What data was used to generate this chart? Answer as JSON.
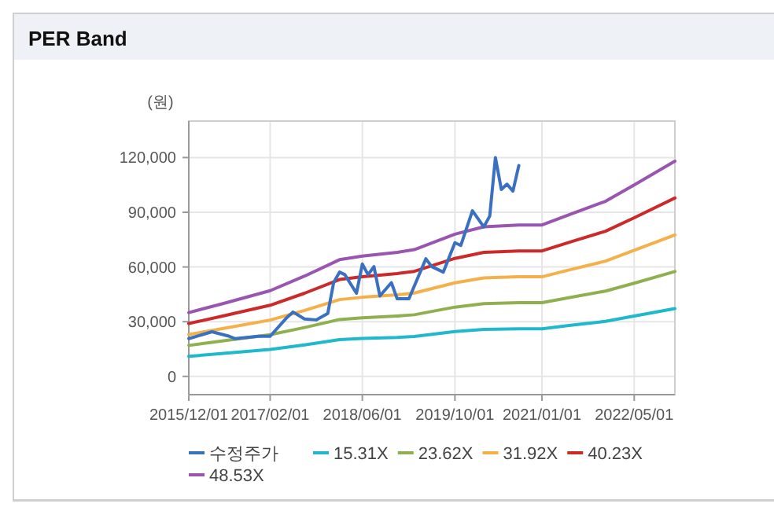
{
  "chart_data": {
    "type": "line",
    "title": "PER Band",
    "ylabel": "(원)",
    "xlim": [
      "2015-12-01",
      "2022-12-01"
    ],
    "xticks": [
      {
        "value": "2015-12-01",
        "label": "2015/12/01"
      },
      {
        "value": "2017-02-01",
        "label": "2017/02/01"
      },
      {
        "value": "2018-06-01",
        "label": "2018/06/01"
      },
      {
        "value": "2019-10-01",
        "label": "2019/10/01"
      },
      {
        "value": "2021-01-01",
        "label": "2021/01/01"
      },
      {
        "value": "2022-05-01",
        "label": "2022/05/01"
      }
    ],
    "ylim": [
      -10000,
      140000
    ],
    "yticks": [
      0,
      {
        "value": 30000,
        "label": "30,000"
      },
      {
        "value": 60000,
        "label": "60,000"
      },
      {
        "value": 90000,
        "label": "90,000"
      },
      {
        "value": 120000,
        "label": "120,000"
      }
    ],
    "grid": true,
    "legend": "bottom",
    "marker": "none",
    "line_style": "solid",
    "series": [
      {
        "name": "수정주가",
        "color": "#3a70c0",
        "x": [
          "2015-12",
          "2016-04",
          "2016-07",
          "2016-08",
          "2016-12",
          "2017-02",
          "2017-05",
          "2017-06",
          "2017-08",
          "2017-10",
          "2017-12",
          "2018-01",
          "2018-02",
          "2018-03",
          "2018-05",
          "2018-06",
          "2018-07",
          "2018-08",
          "2018-09",
          "2018-11",
          "2018-12",
          "2019-02",
          "2019-05",
          "2019-06",
          "2019-08",
          "2019-10",
          "2019-11",
          "2020-01",
          "2020-03",
          "2020-04",
          "2020-05",
          "2020-06",
          "2020-07",
          "2020-08",
          "2020-09"
        ],
        "values": [
          20700,
          24500,
          22000,
          20700,
          22000,
          22000,
          32400,
          35300,
          31500,
          31000,
          34500,
          51400,
          57200,
          55800,
          45600,
          61600,
          55800,
          60200,
          44100,
          51400,
          42600,
          42600,
          64500,
          60200,
          57200,
          73300,
          71800,
          90800,
          82000,
          87900,
          120000,
          102500,
          105400,
          101600,
          115600
        ]
      },
      {
        "name": "15.31X",
        "color": "#1fb8cc",
        "x": [
          "2015-12",
          "2016-06",
          "2017-02",
          "2017-08",
          "2018-02",
          "2018-06",
          "2018-12",
          "2019-03",
          "2019-10",
          "2020-03",
          "2020-09",
          "2021-01",
          "2021-06",
          "2021-12",
          "2022-05",
          "2022-12"
        ],
        "values": [
          11000,
          12600,
          14800,
          17300,
          20200,
          20800,
          21400,
          21900,
          24600,
          25800,
          26100,
          26100,
          28000,
          30200,
          33100,
          37200
        ]
      },
      {
        "name": "23.62X",
        "color": "#90b050",
        "x": [
          "2015-12",
          "2016-06",
          "2017-02",
          "2017-08",
          "2018-02",
          "2018-06",
          "2018-12",
          "2019-03",
          "2019-10",
          "2020-03",
          "2020-09",
          "2021-01",
          "2021-06",
          "2021-12",
          "2022-05",
          "2022-12"
        ],
        "values": [
          17000,
          19500,
          22900,
          26800,
          31200,
          32100,
          33100,
          33800,
          38000,
          39900,
          40400,
          40400,
          43300,
          46800,
          51100,
          57500
        ]
      },
      {
        "name": "31.92X",
        "color": "#f4b04a",
        "x": [
          "2015-12",
          "2016-06",
          "2017-02",
          "2017-08",
          "2018-02",
          "2018-06",
          "2018-12",
          "2019-03",
          "2019-10",
          "2020-03",
          "2020-09",
          "2021-01",
          "2021-06",
          "2021-12",
          "2022-05",
          "2022-12"
        ],
        "values": [
          23000,
          26300,
          30900,
          36200,
          42100,
          43400,
          44700,
          45700,
          51300,
          54000,
          54600,
          54600,
          58600,
          63200,
          69100,
          77600
        ]
      },
      {
        "name": "40.23X",
        "color": "#cc2a2a",
        "x": [
          "2015-12",
          "2016-06",
          "2017-02",
          "2017-08",
          "2018-02",
          "2018-06",
          "2018-12",
          "2019-03",
          "2019-10",
          "2020-03",
          "2020-09",
          "2021-01",
          "2021-06",
          "2021-12",
          "2022-05",
          "2022-12"
        ],
        "values": [
          29000,
          33200,
          39000,
          45600,
          53100,
          54700,
          56400,
          57600,
          64700,
          68000,
          68800,
          68800,
          73800,
          79600,
          87000,
          97800
        ]
      },
      {
        "name": "48.53X",
        "color": "#9955b0",
        "x": [
          "2015-12",
          "2016-06",
          "2017-02",
          "2017-08",
          "2018-02",
          "2018-06",
          "2018-12",
          "2019-03",
          "2019-10",
          "2020-03",
          "2020-09",
          "2021-01",
          "2021-06",
          "2021-12",
          "2022-05",
          "2022-12"
        ],
        "values": [
          35000,
          40000,
          47000,
          55000,
          64000,
          66000,
          68000,
          69500,
          78000,
          82000,
          83000,
          83000,
          89000,
          96000,
          105000,
          118000
        ]
      }
    ]
  }
}
